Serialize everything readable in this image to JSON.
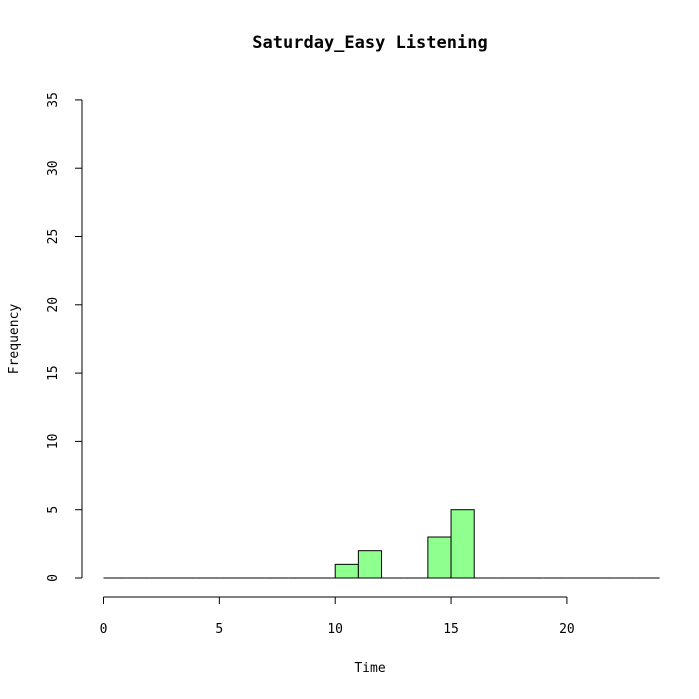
{
  "chart_data": {
    "type": "bar",
    "title": "Saturday_Easy Listening",
    "xlabel": "Time",
    "ylabel": "Frequency",
    "xlim": [
      0,
      24
    ],
    "ylim": [
      0,
      35
    ],
    "x_ticks": [
      0,
      5,
      10,
      15,
      20
    ],
    "y_ticks": [
      0,
      5,
      10,
      15,
      20,
      25,
      30,
      35
    ],
    "bar_color": "#8fff8f",
    "bins": [
      {
        "start": 0,
        "end": 1,
        "count": 0
      },
      {
        "start": 1,
        "end": 2,
        "count": 0
      },
      {
        "start": 2,
        "end": 3,
        "count": 0
      },
      {
        "start": 3,
        "end": 4,
        "count": 0
      },
      {
        "start": 4,
        "end": 5,
        "count": 0
      },
      {
        "start": 5,
        "end": 6,
        "count": 0
      },
      {
        "start": 6,
        "end": 7,
        "count": 0
      },
      {
        "start": 7,
        "end": 8,
        "count": 0
      },
      {
        "start": 8,
        "end": 9,
        "count": 0
      },
      {
        "start": 9,
        "end": 10,
        "count": 0
      },
      {
        "start": 10,
        "end": 11,
        "count": 1
      },
      {
        "start": 11,
        "end": 12,
        "count": 2
      },
      {
        "start": 12,
        "end": 13,
        "count": 0
      },
      {
        "start": 13,
        "end": 14,
        "count": 0
      },
      {
        "start": 14,
        "end": 15,
        "count": 3
      },
      {
        "start": 15,
        "end": 16,
        "count": 5
      },
      {
        "start": 16,
        "end": 17,
        "count": 0
      },
      {
        "start": 17,
        "end": 18,
        "count": 0
      },
      {
        "start": 18,
        "end": 19,
        "count": 0
      },
      {
        "start": 19,
        "end": 20,
        "count": 0
      },
      {
        "start": 20,
        "end": 21,
        "count": 0
      },
      {
        "start": 21,
        "end": 22,
        "count": 0
      },
      {
        "start": 22,
        "end": 23,
        "count": 0
      },
      {
        "start": 23,
        "end": 24,
        "count": 0
      }
    ]
  }
}
